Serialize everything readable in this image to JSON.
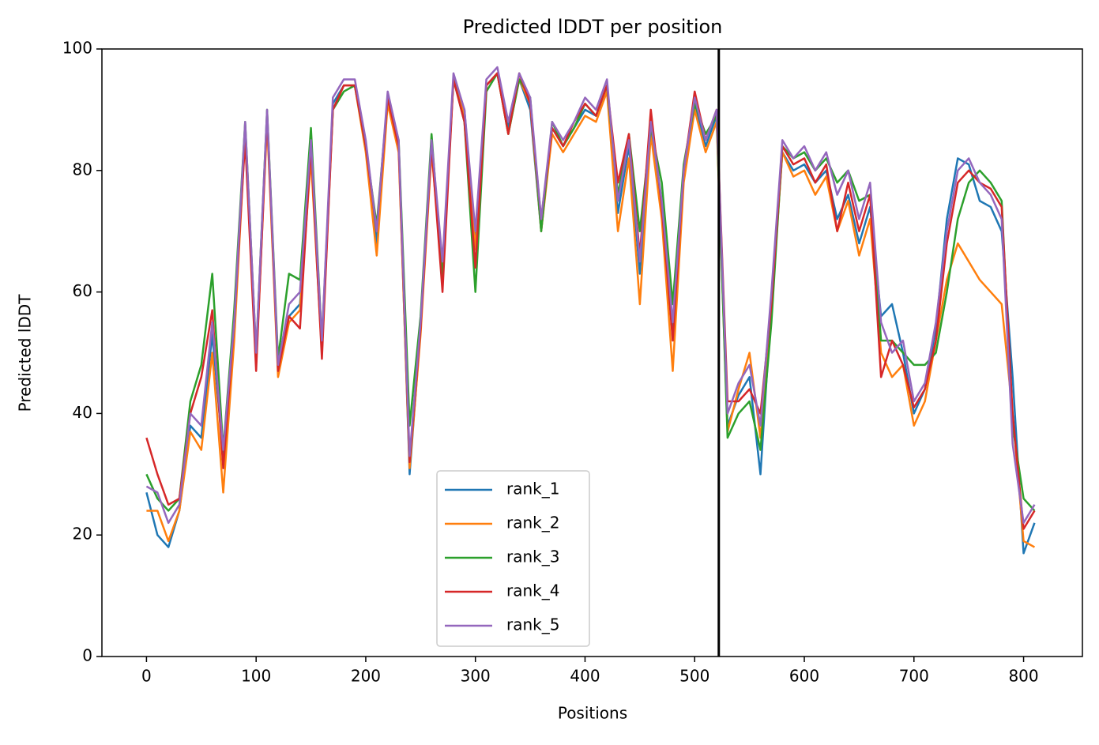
{
  "chart_data": {
    "type": "line",
    "title": "Predicted lDDT per position",
    "xlabel": "Positions",
    "ylabel": "Predicted lDDT",
    "x": [
      0,
      10,
      20,
      30,
      40,
      50,
      60,
      70,
      80,
      90,
      100,
      110,
      120,
      130,
      140,
      150,
      160,
      170,
      180,
      190,
      200,
      210,
      220,
      230,
      240,
      250,
      260,
      270,
      280,
      290,
      300,
      310,
      320,
      330,
      340,
      350,
      360,
      370,
      380,
      390,
      400,
      410,
      420,
      430,
      440,
      450,
      460,
      470,
      480,
      490,
      500,
      510,
      520,
      530,
      540,
      550,
      560,
      570,
      580,
      590,
      600,
      610,
      620,
      630,
      640,
      650,
      660,
      670,
      680,
      690,
      700,
      710,
      720,
      730,
      740,
      750,
      760,
      770,
      780,
      790,
      800,
      810
    ],
    "series": [
      {
        "name": "rank_1",
        "color": "#1f77b4",
        "values": [
          27,
          20,
          18,
          24,
          38,
          36,
          53,
          33,
          54,
          87,
          49,
          89,
          47,
          56,
          58,
          84,
          51,
          91,
          94,
          94,
          84,
          68,
          92,
          84,
          30,
          54,
          84,
          64,
          95,
          90,
          68,
          94,
          96,
          87,
          95,
          90,
          70,
          87,
          84,
          87,
          90,
          89,
          94,
          73,
          84,
          63,
          87,
          73,
          53,
          79,
          91,
          84,
          89,
          38,
          43,
          46,
          30,
          58,
          83,
          80,
          81,
          78,
          80,
          72,
          76,
          68,
          74,
          56,
          58,
          50,
          40,
          44,
          54,
          72,
          82,
          81,
          75,
          74,
          70,
          46,
          17,
          22
        ]
      },
      {
        "name": "rank_2",
        "color": "#ff7f0e",
        "values": [
          24,
          24,
          19,
          24,
          37,
          34,
          50,
          27,
          52,
          86,
          48,
          88,
          46,
          55,
          57,
          82,
          50,
          90,
          94,
          94,
          83,
          66,
          91,
          83,
          31,
          53,
          83,
          63,
          95,
          89,
          67,
          94,
          96,
          86,
          95,
          91,
          70,
          86,
          83,
          86,
          89,
          88,
          93,
          70,
          82,
          58,
          86,
          72,
          47,
          78,
          90,
          83,
          88,
          37,
          44,
          50,
          36,
          57,
          83,
          79,
          80,
          76,
          79,
          70,
          75,
          66,
          72,
          50,
          46,
          48,
          38,
          42,
          52,
          62,
          68,
          65,
          62,
          60,
          58,
          40,
          19,
          18
        ]
      },
      {
        "name": "rank_3",
        "color": "#2ca02c",
        "values": [
          30,
          26,
          24,
          26,
          42,
          48,
          63,
          34,
          57,
          88,
          50,
          90,
          49,
          63,
          62,
          87,
          52,
          90,
          93,
          94,
          84,
          71,
          92,
          85,
          38,
          56,
          86,
          62,
          95,
          88,
          60,
          93,
          96,
          86,
          95,
          92,
          70,
          88,
          84,
          87,
          91,
          89,
          94,
          76,
          86,
          70,
          87,
          78,
          58,
          81,
          91,
          86,
          89,
          36,
          40,
          42,
          34,
          55,
          84,
          82,
          83,
          80,
          82,
          78,
          80,
          75,
          76,
          52,
          52,
          50,
          48,
          48,
          50,
          60,
          72,
          78,
          80,
          78,
          75,
          38,
          26,
          24
        ]
      },
      {
        "name": "rank_4",
        "color": "#d62728",
        "values": [
          36,
          30,
          25,
          26,
          40,
          46,
          57,
          31,
          55,
          85,
          47,
          89,
          47,
          56,
          54,
          84,
          49,
          90,
          94,
          94,
          84,
          70,
          92,
          84,
          32,
          54,
          84,
          60,
          95,
          88,
          64,
          94,
          96,
          86,
          96,
          91,
          72,
          87,
          84,
          88,
          91,
          89,
          94,
          78,
          86,
          66,
          90,
          74,
          52,
          80,
          93,
          85,
          90,
          42,
          42,
          44,
          40,
          58,
          84,
          81,
          82,
          78,
          81,
          70,
          78,
          70,
          76,
          46,
          52,
          48,
          41,
          44,
          52,
          68,
          78,
          80,
          78,
          77,
          74,
          40,
          21,
          24
        ]
      },
      {
        "name": "rank_5",
        "color": "#9467bd",
        "values": [
          28,
          27,
          22,
          25,
          40,
          38,
          55,
          34,
          55,
          88,
          50,
          90,
          48,
          58,
          60,
          85,
          52,
          92,
          95,
          95,
          85,
          70,
          93,
          85,
          33,
          55,
          85,
          65,
          96,
          90,
          70,
          95,
          97,
          88,
          96,
          92,
          72,
          88,
          85,
          88,
          92,
          90,
          95,
          75,
          85,
          65,
          88,
          75,
          55,
          80,
          92,
          85,
          90,
          40,
          45,
          48,
          38,
          60,
          85,
          82,
          84,
          80,
          83,
          76,
          80,
          72,
          78,
          55,
          50,
          52,
          42,
          45,
          55,
          70,
          80,
          82,
          78,
          76,
          72,
          35,
          22,
          25
        ]
      }
    ],
    "vlines": [
      522
    ],
    "xlim": [
      -40.65,
      853.65
    ],
    "xticks": [
      0,
      100,
      200,
      300,
      400,
      500,
      600,
      700,
      800
    ],
    "ylim": [
      0,
      100
    ],
    "yticks": [
      0,
      20,
      40,
      60,
      80,
      100
    ],
    "legend": "lower center",
    "grid": false
  }
}
